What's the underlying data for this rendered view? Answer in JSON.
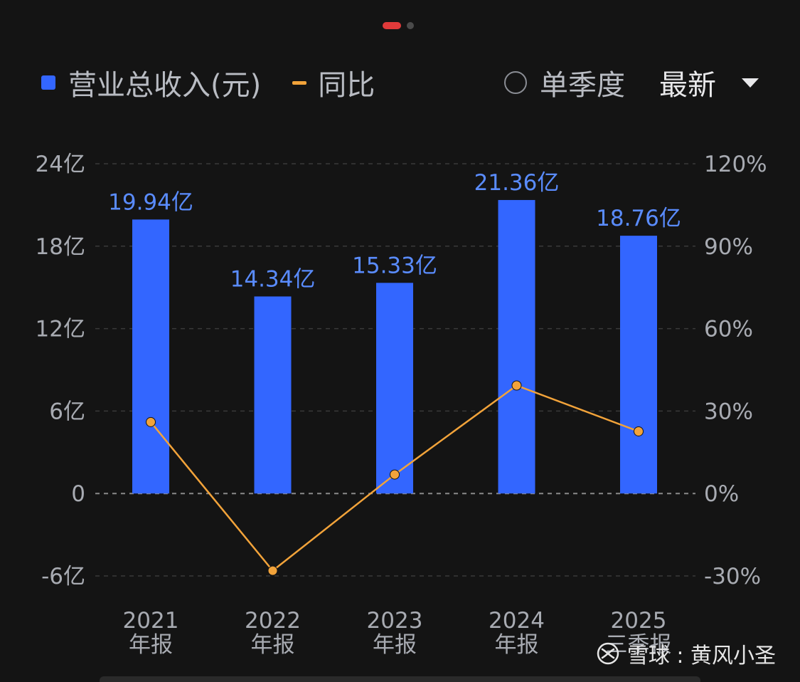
{
  "pager": {
    "active_color": "#e03a3a",
    "inactive_color": "#4a4a4a"
  },
  "legend": {
    "bar_label": "营业总收入(元)",
    "line_label": "同比",
    "bar_color": "#3366ff",
    "line_color": "#f2a33a"
  },
  "controls": {
    "toggle_label": "单季度",
    "period_label": "最新",
    "dropdown_icon": "chevron-down-icon"
  },
  "watermark": {
    "icon": "xueqiu-logo-icon",
    "text": "雪球 : 黄风小圣"
  },
  "chart_data": {
    "type": "bar",
    "categories": [
      [
        "2021",
        "年报"
      ],
      [
        "2022",
        "年报"
      ],
      [
        "2023",
        "年报"
      ],
      [
        "2024",
        "年报"
      ],
      [
        "2025",
        "三季报"
      ]
    ],
    "series": [
      {
        "name": "营业总收入(元)",
        "type": "bar",
        "axis": "left",
        "unit": "亿",
        "values": [
          19.94,
          14.34,
          15.33,
          21.36,
          18.76
        ],
        "labels": [
          "19.94亿",
          "14.34亿",
          "15.33亿",
          "21.36亿",
          "18.76亿"
        ]
      },
      {
        "name": "同比",
        "type": "line",
        "axis": "right",
        "unit": "%",
        "values": [
          26,
          -28.1,
          6.9,
          39.3,
          22.6
        ]
      }
    ],
    "y_left": {
      "ticks": [
        24,
        18,
        12,
        6,
        0,
        -6
      ],
      "tick_labels": [
        "24亿",
        "18亿",
        "12亿",
        "6亿",
        "0",
        "-6亿"
      ],
      "range": [
        -6,
        24
      ]
    },
    "y_right": {
      "ticks": [
        120,
        90,
        60,
        30,
        0,
        -30
      ],
      "tick_labels": [
        "120%",
        "90%",
        "60%",
        "30%",
        "0%",
        "-30%"
      ],
      "range": [
        -30,
        120
      ]
    },
    "grid": true,
    "legend_position": "top-left",
    "colors": {
      "bar": "#3366ff",
      "bar_label": "#5a8cff",
      "line": "#f2a33a",
      "grid": "#3a3a3a",
      "zero_line": "#8a8a8a",
      "axis_text": "#a8abb2"
    }
  }
}
